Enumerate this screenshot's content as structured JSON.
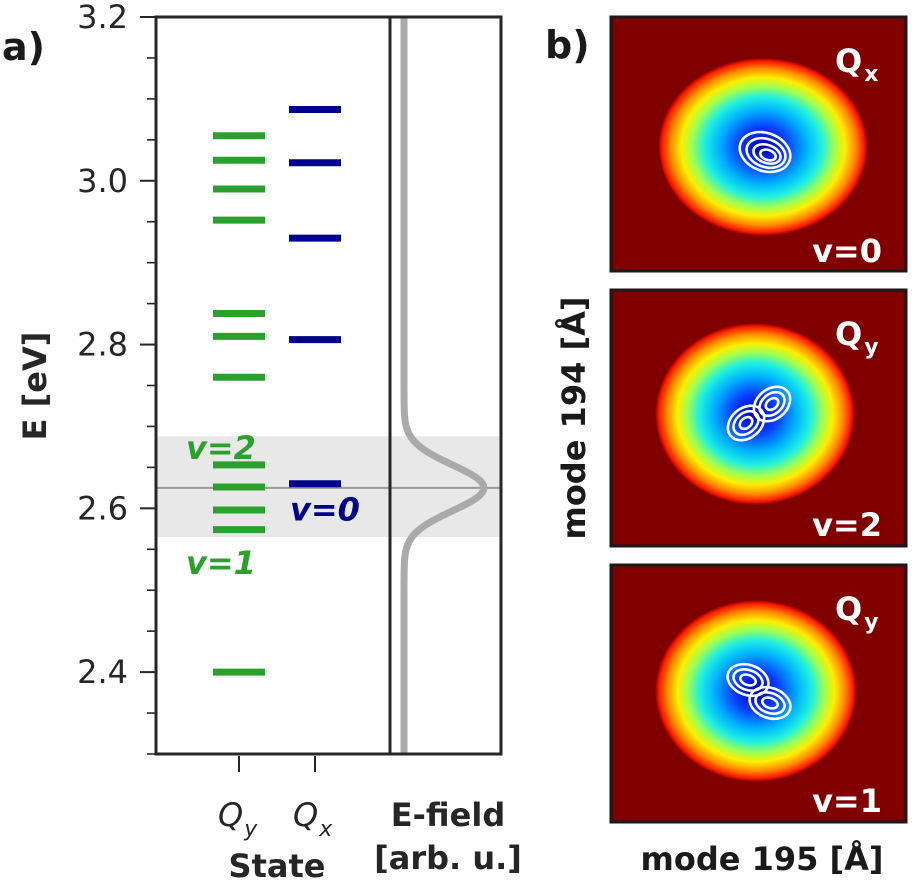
{
  "panel_a": {
    "label": "a)",
    "chart_data": {
      "type": "scatter",
      "marker": "horizontal-line",
      "ylabel": "E [eV]",
      "xlabel": "State",
      "ylim": [
        2.3,
        3.2
      ],
      "yticks_major": [
        2.4,
        2.6,
        2.8,
        3.0,
        3.2
      ],
      "yticks_major_labels": [
        "2.4",
        "2.6",
        "2.8",
        "3.0",
        "3.2"
      ],
      "yticks_minor": [
        2.3,
        2.35,
        2.45,
        2.5,
        2.55,
        2.65,
        2.7,
        2.75,
        2.85,
        2.9,
        2.95,
        3.05,
        3.1,
        3.15
      ],
      "categories": [
        "Q_y",
        "Q_x"
      ],
      "series": [
        {
          "category": "Q_y",
          "color": "#2ca02c",
          "values": [
            2.4,
            2.574,
            2.598,
            2.626,
            2.653,
            2.76,
            2.81,
            2.838,
            2.952,
            2.99,
            3.025,
            3.055
          ]
        },
        {
          "category": "Q_x",
          "color": "#00008b",
          "values": [
            2.63,
            2.806,
            2.93,
            3.022,
            3.087
          ]
        }
      ],
      "annotations": [
        {
          "text": "v=2",
          "color": "#2ca02c",
          "y": 2.66
        },
        {
          "text": "v=1",
          "color": "#2ca02c",
          "y": 2.52
        },
        {
          "text": "v=0",
          "color": "#00008b",
          "y": 2.585
        }
      ],
      "tick_labels": {
        "qy_main": "Q",
        "qy_sub": "y",
        "qx_main": "Q",
        "qx_sub": "x"
      },
      "efield": {
        "label_line1": "E-field",
        "label_line2": "[arb. u.]",
        "center": 2.625,
        "band": [
          2.565,
          2.688
        ],
        "sigma": 0.028,
        "color": "#aaaaaa",
        "band_color": "#e8e8e8"
      }
    }
  },
  "panel_b": {
    "label": "b)",
    "xlabel": "mode 195 [Å]",
    "ylabel": "mode 194 [Å]",
    "colors": {
      "background": "#800000"
    },
    "maps": [
      {
        "state_main": "Q",
        "state_sub": "x",
        "vib": "v=0",
        "nodes": 1
      },
      {
        "state_main": "Q",
        "state_sub": "y",
        "vib": "v=2",
        "nodes": 2,
        "orientation": "lower-left / upper-right"
      },
      {
        "state_main": "Q",
        "state_sub": "y",
        "vib": "v=1",
        "nodes": 2,
        "orientation": "upper-left / lower-right"
      }
    ]
  }
}
